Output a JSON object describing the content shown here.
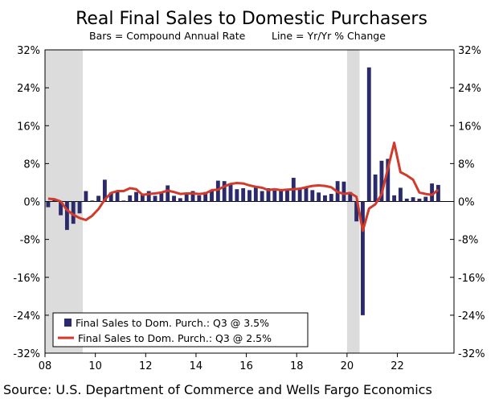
{
  "chart_data": {
    "type": "bar+line",
    "title": "Real Final Sales to Domestic Purchasers",
    "subtitle_left": "Bars = Compound Annual Rate",
    "subtitle_right": "Line = Yr/Yr % Change",
    "source": "Source: U.S. Department of Commerce and Wells Fargo Economics",
    "x_tick_labels": [
      "08",
      "10",
      "12",
      "14",
      "16",
      "18",
      "20",
      "22"
    ],
    "x_tick_years": [
      2008,
      2010,
      2012,
      2014,
      2016,
      2018,
      2020,
      2022
    ],
    "y_tick_values": [
      32,
      24,
      16,
      8,
      0,
      -8,
      -16,
      -24,
      -32
    ],
    "y_tick_labels": [
      "32%",
      "24%",
      "16%",
      "8%",
      "0%",
      "-8%",
      "-16%",
      "-24%",
      "-32%"
    ],
    "ylim": [
      -32,
      32
    ],
    "recessions": [
      {
        "start": "2008Q1",
        "end": "2009Q2"
      },
      {
        "start": "2020Q1",
        "end": "2020Q2"
      }
    ],
    "colors": {
      "bars": "#2b2a6b",
      "line": "#d23a2b",
      "recession": "#dcdcdc"
    },
    "quarters": [
      "2008Q1",
      "2008Q2",
      "2008Q3",
      "2008Q4",
      "2009Q1",
      "2009Q2",
      "2009Q3",
      "2009Q4",
      "2010Q1",
      "2010Q2",
      "2010Q3",
      "2010Q4",
      "2011Q1",
      "2011Q2",
      "2011Q3",
      "2011Q4",
      "2012Q1",
      "2012Q2",
      "2012Q3",
      "2012Q4",
      "2013Q1",
      "2013Q2",
      "2013Q3",
      "2013Q4",
      "2014Q1",
      "2014Q2",
      "2014Q3",
      "2014Q4",
      "2015Q1",
      "2015Q2",
      "2015Q3",
      "2015Q4",
      "2016Q1",
      "2016Q2",
      "2016Q3",
      "2016Q4",
      "2017Q1",
      "2017Q2",
      "2017Q3",
      "2017Q4",
      "2018Q1",
      "2018Q2",
      "2018Q3",
      "2018Q4",
      "2019Q1",
      "2019Q2",
      "2019Q3",
      "2019Q4",
      "2020Q1",
      "2020Q2",
      "2020Q3",
      "2020Q4",
      "2021Q1",
      "2021Q2",
      "2021Q3",
      "2021Q4",
      "2022Q1",
      "2022Q2",
      "2022Q3",
      "2022Q4",
      "2023Q1",
      "2023Q2",
      "2023Q3"
    ],
    "series": [
      {
        "name": "Final Sales to Dom. Purch.: Q3 @ 3.5%",
        "kind": "bar",
        "values": [
          -1.2,
          0.3,
          -2.9,
          -6.0,
          -4.7,
          -2.5,
          2.2,
          0.2,
          1.2,
          4.6,
          1.9,
          2.1,
          0.2,
          1.3,
          2.0,
          1.7,
          2.2,
          1.2,
          2.0,
          3.4,
          1.2,
          0.7,
          1.5,
          2.2,
          1.3,
          2.0,
          2.4,
          4.4,
          4.3,
          3.8,
          2.6,
          2.8,
          2.4,
          3.2,
          2.2,
          2.8,
          2.3,
          2.2,
          2.6,
          5.0,
          2.9,
          3.1,
          2.4,
          1.9,
          1.3,
          1.6,
          4.3,
          4.2,
          2.0,
          -4.2,
          -24.0,
          28.3,
          5.7,
          8.6,
          9.0,
          1.3,
          2.9,
          0.6,
          0.9,
          0.6,
          1.0,
          3.8,
          3.5
        ]
      },
      {
        "name": "Final Sales to Dom. Purch.: Q3 @ 2.5%",
        "kind": "line",
        "values": [
          0.6,
          0.5,
          0.0,
          -1.8,
          -2.8,
          -3.5,
          -3.9,
          -3.0,
          -1.6,
          0.4,
          1.8,
          2.2,
          2.2,
          2.8,
          2.6,
          1.4,
          1.6,
          1.7,
          1.9,
          2.3,
          2.0,
          1.6,
          1.7,
          1.7,
          1.6,
          1.7,
          2.4,
          2.5,
          3.2,
          3.7,
          3.9,
          3.8,
          3.4,
          3.1,
          2.9,
          2.4,
          2.6,
          2.4,
          2.5,
          2.6,
          2.7,
          3.0,
          3.3,
          3.4,
          3.3,
          3.0,
          2.0,
          1.6,
          1.8,
          1.0,
          -6.2,
          -1.5,
          -0.6,
          1.5,
          7.0,
          12.4,
          6.2,
          5.5,
          4.6,
          1.9,
          1.6,
          1.4,
          2.5
        ]
      }
    ]
  }
}
